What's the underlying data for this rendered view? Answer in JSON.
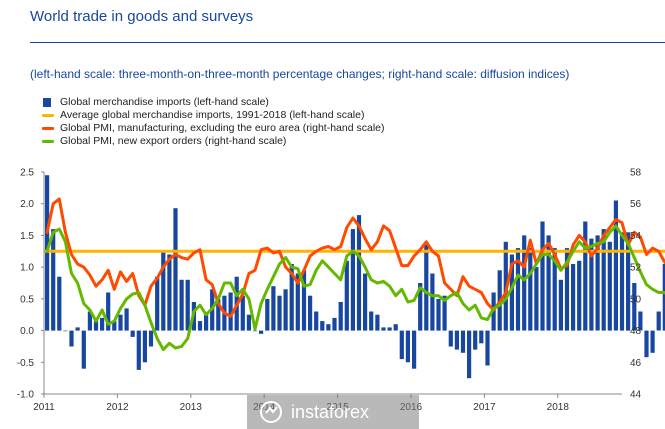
{
  "title": "World trade in goods and surveys",
  "subtitle": "(left-hand scale: three-month-on-three-month percentage changes; right-hand scale: diffusion indices)",
  "watermark": "instaforex",
  "colors": {
    "imports": "#17479e",
    "average": "#ffb400",
    "pmi_manufacturing": "#ff4b00",
    "pmi_export": "#65b800",
    "text": "#17479e"
  },
  "chart_data": {
    "type": "bar+line",
    "title": "World trade in goods and surveys",
    "subtitle": "(left-hand scale: three-month-on-three-month percentage changes; right-hand scale: diffusion indices)",
    "legend": [
      "Global merchandise imports (left-hand scale)",
      "Average global merchandise imports, 1991-2018 (left-hand scale)",
      "Global PMI, manufacturing, excluding the euro area (right-hand scale)",
      "Global PMI, new export orders (right-hand scale)"
    ],
    "legend_position": "top-left",
    "x_labels": [
      "2011",
      "2012",
      "2013",
      "2014",
      "2015",
      "2016",
      "2017",
      "2018"
    ],
    "x_start": "2011-01",
    "y_left": {
      "range": [
        -1.0,
        2.5
      ],
      "ticks": [
        "-1.0",
        "-0.5",
        "0.0",
        "0.5",
        "1.0",
        "1.5",
        "2.0",
        "2.5"
      ]
    },
    "y_right": {
      "range": [
        44,
        58
      ],
      "ticks": [
        "44",
        "46",
        "48",
        "50",
        "52",
        "54",
        "56",
        "58"
      ]
    },
    "grid": false,
    "bars": {
      "name": "Global merchandise imports (left-hand scale)",
      "axis": "left",
      "values": [
        2.45,
        1.6,
        0.85,
        0.0,
        -0.25,
        0.05,
        -0.6,
        0.3,
        0.15,
        0.2,
        0.6,
        0.15,
        0.25,
        0.35,
        -0.1,
        -0.62,
        -0.5,
        -0.25,
        0.85,
        1.25,
        1.2,
        1.93,
        0.8,
        0.8,
        0.45,
        0.15,
        0.25,
        0.65,
        0.5,
        0.55,
        0.6,
        0.85,
        0.55,
        0.25,
        0.0,
        -0.05,
        0.5,
        0.7,
        0.55,
        0.65,
        1.05,
        0.9,
        0.95,
        0.55,
        0.3,
        0.15,
        0.1,
        0.2,
        0.45,
        1.1,
        1.6,
        1.82,
        0.9,
        0.3,
        0.25,
        0.05,
        0.05,
        0.1,
        -0.45,
        -0.5,
        -0.6,
        0.75,
        1.35,
        0.9,
        0.5,
        0.55,
        -0.25,
        -0.3,
        -0.35,
        -0.75,
        -0.3,
        -0.2,
        -0.55,
        0.6,
        0.95,
        1.4,
        1.2,
        1.3,
        1.5,
        1.3,
        1.0,
        1.72,
        1.5,
        1.3,
        0.8,
        1.3,
        1.05,
        1.1,
        1.72,
        1.45,
        1.5,
        1.6,
        1.4,
        2.05,
        1.55,
        1.55,
        0.75,
        0.3,
        -0.42,
        -0.35,
        0.3,
        1.05,
        1.4,
        1.47
      ]
    },
    "average": {
      "name": "Average global merchandise imports, 1991-2018 (left-hand scale)",
      "axis": "left",
      "value": 1.25
    },
    "series": [
      {
        "name": "Global PMI, manufacturing, excluding the euro area (right-hand scale)",
        "axis": "right",
        "values": [
          54.2,
          56.0,
          56.3,
          54.2,
          52.8,
          52.2,
          52.0,
          51.5,
          50.8,
          51.2,
          51.8,
          50.6,
          51.7,
          51.1,
          51.6,
          50.2,
          49.6,
          50.8,
          51.3,
          52.0,
          52.5,
          52.8,
          52.6,
          52.5,
          52.9,
          53.1,
          51.2,
          50.9,
          49.7,
          49.1,
          48.9,
          49.6,
          50.3,
          51.6,
          51.8,
          53.1,
          53.2,
          52.9,
          53.0,
          52.0,
          51.6,
          51.0,
          51.8,
          52.7,
          53.0,
          53.2,
          53.3,
          53.1,
          53.3,
          54.5,
          55.1,
          54.6,
          53.8,
          53.1,
          53.6,
          54.6,
          54.3,
          53.2,
          52.1,
          52.1,
          52.7,
          53.1,
          53.6,
          53.0,
          52.7,
          51.0,
          50.6,
          50.2,
          51.4,
          50.8,
          50.6,
          50.4,
          49.7,
          49.3,
          49.8,
          50.4,
          52.2,
          52.4,
          52.0,
          53.7,
          52.2,
          53.1,
          53.5,
          52.8,
          51.9,
          52.1,
          53.4,
          54.0,
          53.6,
          52.7,
          53.2,
          54.0,
          54.5,
          55.0,
          54.8,
          53.4,
          54.2,
          53.9,
          52.8,
          53.2,
          53.0,
          52.3,
          52.1,
          52.3,
          51.9,
          52.0,
          52.2
        ]
      },
      {
        "name": "Global PMI, new export orders (right-hand scale)",
        "axis": "right",
        "values": [
          53.0,
          54.2,
          54.4,
          53.6,
          51.6,
          51.0,
          49.7,
          49.3,
          48.6,
          49.3,
          48.4,
          48.6,
          49.4,
          50.0,
          50.3,
          50.4,
          49.6,
          48.5,
          47.5,
          46.8,
          47.2,
          46.9,
          47.0,
          47.5,
          49.2,
          49.6,
          49.0,
          49.4,
          50.0,
          51.0,
          51.0,
          50.2,
          50.6,
          50.0,
          48.1,
          49.7,
          50.6,
          51.4,
          52.2,
          52.6,
          52.0,
          51.9,
          50.8,
          50.9,
          51.8,
          52.4,
          52.0,
          51.6,
          51.2,
          52.7,
          53.0,
          52.7,
          52.0,
          51.2,
          51.0,
          51.1,
          50.8,
          50.2,
          50.6,
          49.8,
          49.9,
          50.7,
          50.4,
          50.2,
          50.2,
          49.9,
          50.2,
          50.4,
          49.7,
          49.3,
          49.6,
          48.8,
          48.7,
          49.4,
          49.6,
          50.0,
          50.7,
          51.5,
          51.2,
          51.6,
          52.2,
          52.8,
          52.8,
          52.4,
          51.8,
          52.3,
          53.0,
          53.6,
          53.2,
          53.3,
          53.5,
          53.6,
          54.2,
          54.6,
          54.0,
          53.5,
          52.6,
          51.7,
          50.9,
          50.6,
          50.4,
          50.4,
          50.0,
          49.8,
          49.8,
          50.0,
          49.9
        ]
      }
    ]
  }
}
